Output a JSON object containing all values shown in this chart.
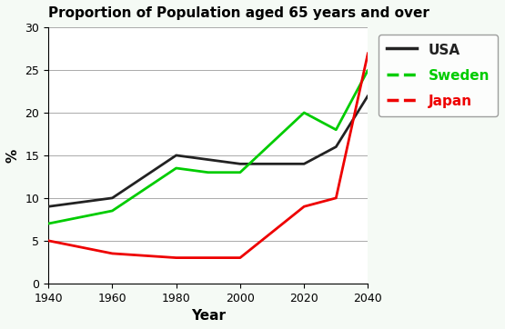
{
  "title": "Proportion of Population aged 65 years and over",
  "xlabel": "Year",
  "ylabel": "%",
  "years": [
    1940,
    1960,
    1980,
    1990,
    2000,
    2020,
    2030,
    2040
  ],
  "usa": [
    9,
    10,
    15,
    14.5,
    14,
    14,
    16,
    22
  ],
  "sweden": [
    7,
    8.5,
    13.5,
    13,
    13,
    20,
    18,
    25
  ],
  "japan": [
    5,
    3.5,
    3,
    3,
    3,
    9,
    10,
    27
  ],
  "usa_color": "#222222",
  "sweden_color": "#00cc00",
  "japan_color": "#ee0000",
  "bg_color": "#f5faf5",
  "plot_bg": "#ffffff",
  "ylim": [
    0,
    30
  ],
  "xlim": [
    1940,
    2040
  ],
  "xticks": [
    1940,
    1960,
    1980,
    2000,
    2020,
    2040
  ],
  "yticks": [
    0,
    5,
    10,
    15,
    20,
    25,
    30
  ],
  "legend_labels": [
    "USA",
    "Sweden",
    "Japan"
  ],
  "title_fontsize": 11,
  "axis_label_fontsize": 11,
  "legend_fontsize": 11,
  "linewidth": 2.0
}
